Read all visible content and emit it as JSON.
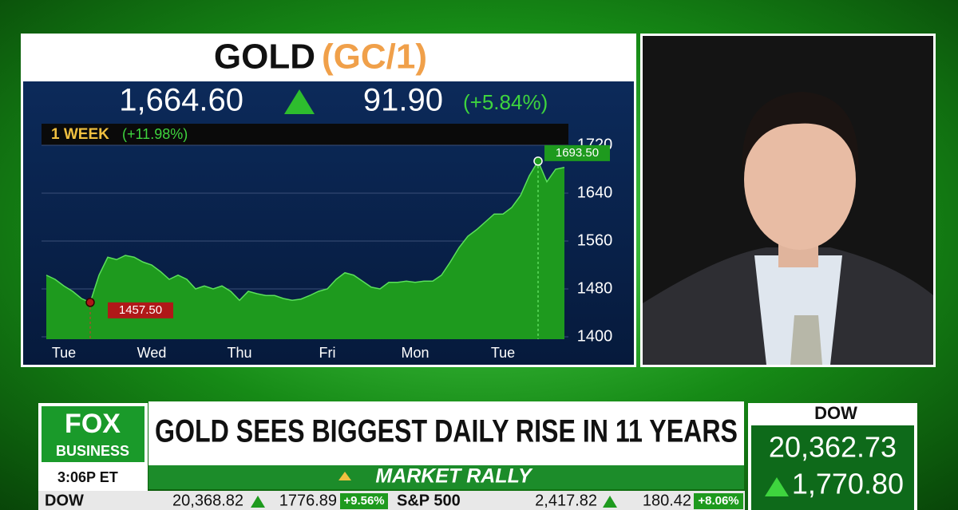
{
  "chart_data": {
    "type": "area",
    "title": "GOLD",
    "symbol": "(GC/1)",
    "price": "1,664.60",
    "change": "91.90",
    "change_pct": "(+5.84%)",
    "period": "1 WEEK",
    "period_change": "(+11.98%)",
    "categories": [
      null,
      null,
      "Tue",
      null,
      null,
      null,
      null,
      null,
      null,
      null,
      null,
      null,
      "Wed",
      null,
      null,
      null,
      null,
      null,
      null,
      null,
      null,
      null,
      "Thu",
      null,
      null,
      null,
      null,
      null,
      null,
      null,
      null,
      null,
      "Fri",
      null,
      null,
      null,
      null,
      null,
      null,
      null,
      null,
      null,
      "Mon",
      null,
      null,
      null,
      null,
      null,
      null,
      null,
      null,
      null,
      "Tue",
      null,
      null,
      null,
      null,
      null,
      null,
      null
    ],
    "values": [
      1503,
      1496,
      1485,
      1476,
      1464,
      1457.5,
      1503,
      1533,
      1529,
      1536,
      1533,
      1525,
      1520,
      1509,
      1496,
      1503,
      1496,
      1480,
      1485,
      1480,
      1485,
      1476,
      1461,
      1476,
      1472,
      1469,
      1469,
      1464,
      1461,
      1463,
      1469,
      1476,
      1480,
      1496,
      1507,
      1503,
      1493,
      1483,
      1480,
      1491,
      1491,
      1493,
      1491,
      1493,
      1493,
      1503,
      1525,
      1549,
      1568,
      1579,
      1592,
      1605,
      1605,
      1616,
      1636,
      1669,
      1693.5,
      1659,
      1680,
      1683
    ],
    "value_labels": [
      null,
      null,
      null,
      null,
      null,
      "1457.50",
      null,
      null,
      null,
      null,
      null,
      null,
      null,
      null,
      null,
      null,
      null,
      null,
      null,
      null,
      null,
      null,
      null,
      null,
      null,
      null,
      null,
      null,
      null,
      null,
      null,
      null,
      null,
      null,
      null,
      null,
      null,
      null,
      null,
      null,
      null,
      null,
      null,
      null,
      null,
      null,
      null,
      null,
      null,
      null,
      null,
      null,
      null,
      null,
      null,
      null,
      "1693.50",
      null,
      null,
      null
    ],
    "color": "#1e9a1e",
    "ylim": [
      1400,
      1720
    ],
    "yticks": [
      1400,
      1480,
      1560,
      1640,
      1720
    ],
    "grid": true
  },
  "lower_third": {
    "logo_top": "FOX",
    "logo_bottom": "BUSINESS",
    "time": "3:06P ET",
    "headline": "GOLD SEES BIGGEST DAILY RISE IN 11 YEARS",
    "subhead": "MARKET RALLY",
    "index_box": {
      "name": "DOW",
      "value": "20,362.73",
      "change": "1,770.80"
    }
  },
  "ticker": [
    {
      "name": "DOW",
      "value": "20,368.82",
      "change": "1776.89",
      "pct": "+9.56%"
    },
    {
      "name": "S&P 500",
      "value": "2,417.82",
      "change": "180.42",
      "pct": "+8.06%"
    }
  ]
}
